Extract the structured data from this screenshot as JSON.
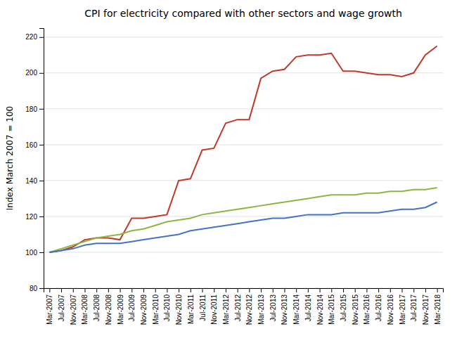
{
  "chart_data": {
    "type": "line",
    "title": "CPI for electricity compared with other sectors and wage growth",
    "ylabel": "Index March 2007 = 100",
    "ylim": [
      80,
      225
    ],
    "yticks": [
      80,
      100,
      120,
      140,
      160,
      180,
      200,
      220
    ],
    "grid": true,
    "categories": [
      "Mar-2007",
      "Jul-2007",
      "Nov-2007",
      "Mar-2008",
      "Jul-2008",
      "Nov-2008",
      "Mar-2009",
      "Jul-2009",
      "Nov-2009",
      "Mar-2010",
      "Jul-2010",
      "Nov-2010",
      "Mar-2011",
      "Jul-2011",
      "Nov-2011",
      "Mar-2012",
      "Jul-2012",
      "Nov-2012",
      "Mar-2013",
      "Jul-2013",
      "Nov-2013",
      "Mar-2014",
      "Jul-2014",
      "Nov-2014",
      "Mar-2015",
      "Jul-2015",
      "Nov-2015",
      "Mar-2016",
      "Jul-2016",
      "Nov-2016",
      "Mar-2017",
      "Jul-2017",
      "Nov-2017",
      "Mar-2018"
    ],
    "series": [
      {
        "color": "#c0392b",
        "values": [
          100,
          101,
          103,
          107,
          108,
          108,
          107,
          119,
          119,
          120,
          121,
          140,
          141,
          157,
          158,
          172,
          174,
          174,
          197,
          201,
          202,
          209,
          210,
          210,
          211,
          201,
          201,
          200,
          199,
          199,
          198,
          200,
          210,
          215
        ]
      },
      {
        "color": "#8db53f",
        "values": [
          100,
          102,
          104,
          106,
          108,
          109,
          110,
          112,
          113,
          115,
          117,
          118,
          119,
          121,
          122,
          123,
          124,
          125,
          126,
          127,
          128,
          129,
          130,
          131,
          132,
          132,
          132,
          133,
          133,
          134,
          134,
          135,
          135,
          136
        ]
      },
      {
        "color": "#4472c4",
        "values": [
          100,
          101,
          102,
          104,
          105,
          105,
          105,
          106,
          107,
          108,
          109,
          110,
          112,
          113,
          114,
          115,
          116,
          117,
          118,
          119,
          119,
          120,
          121,
          121,
          121,
          122,
          122,
          122,
          122,
          123,
          124,
          124,
          125,
          128
        ]
      }
    ]
  }
}
